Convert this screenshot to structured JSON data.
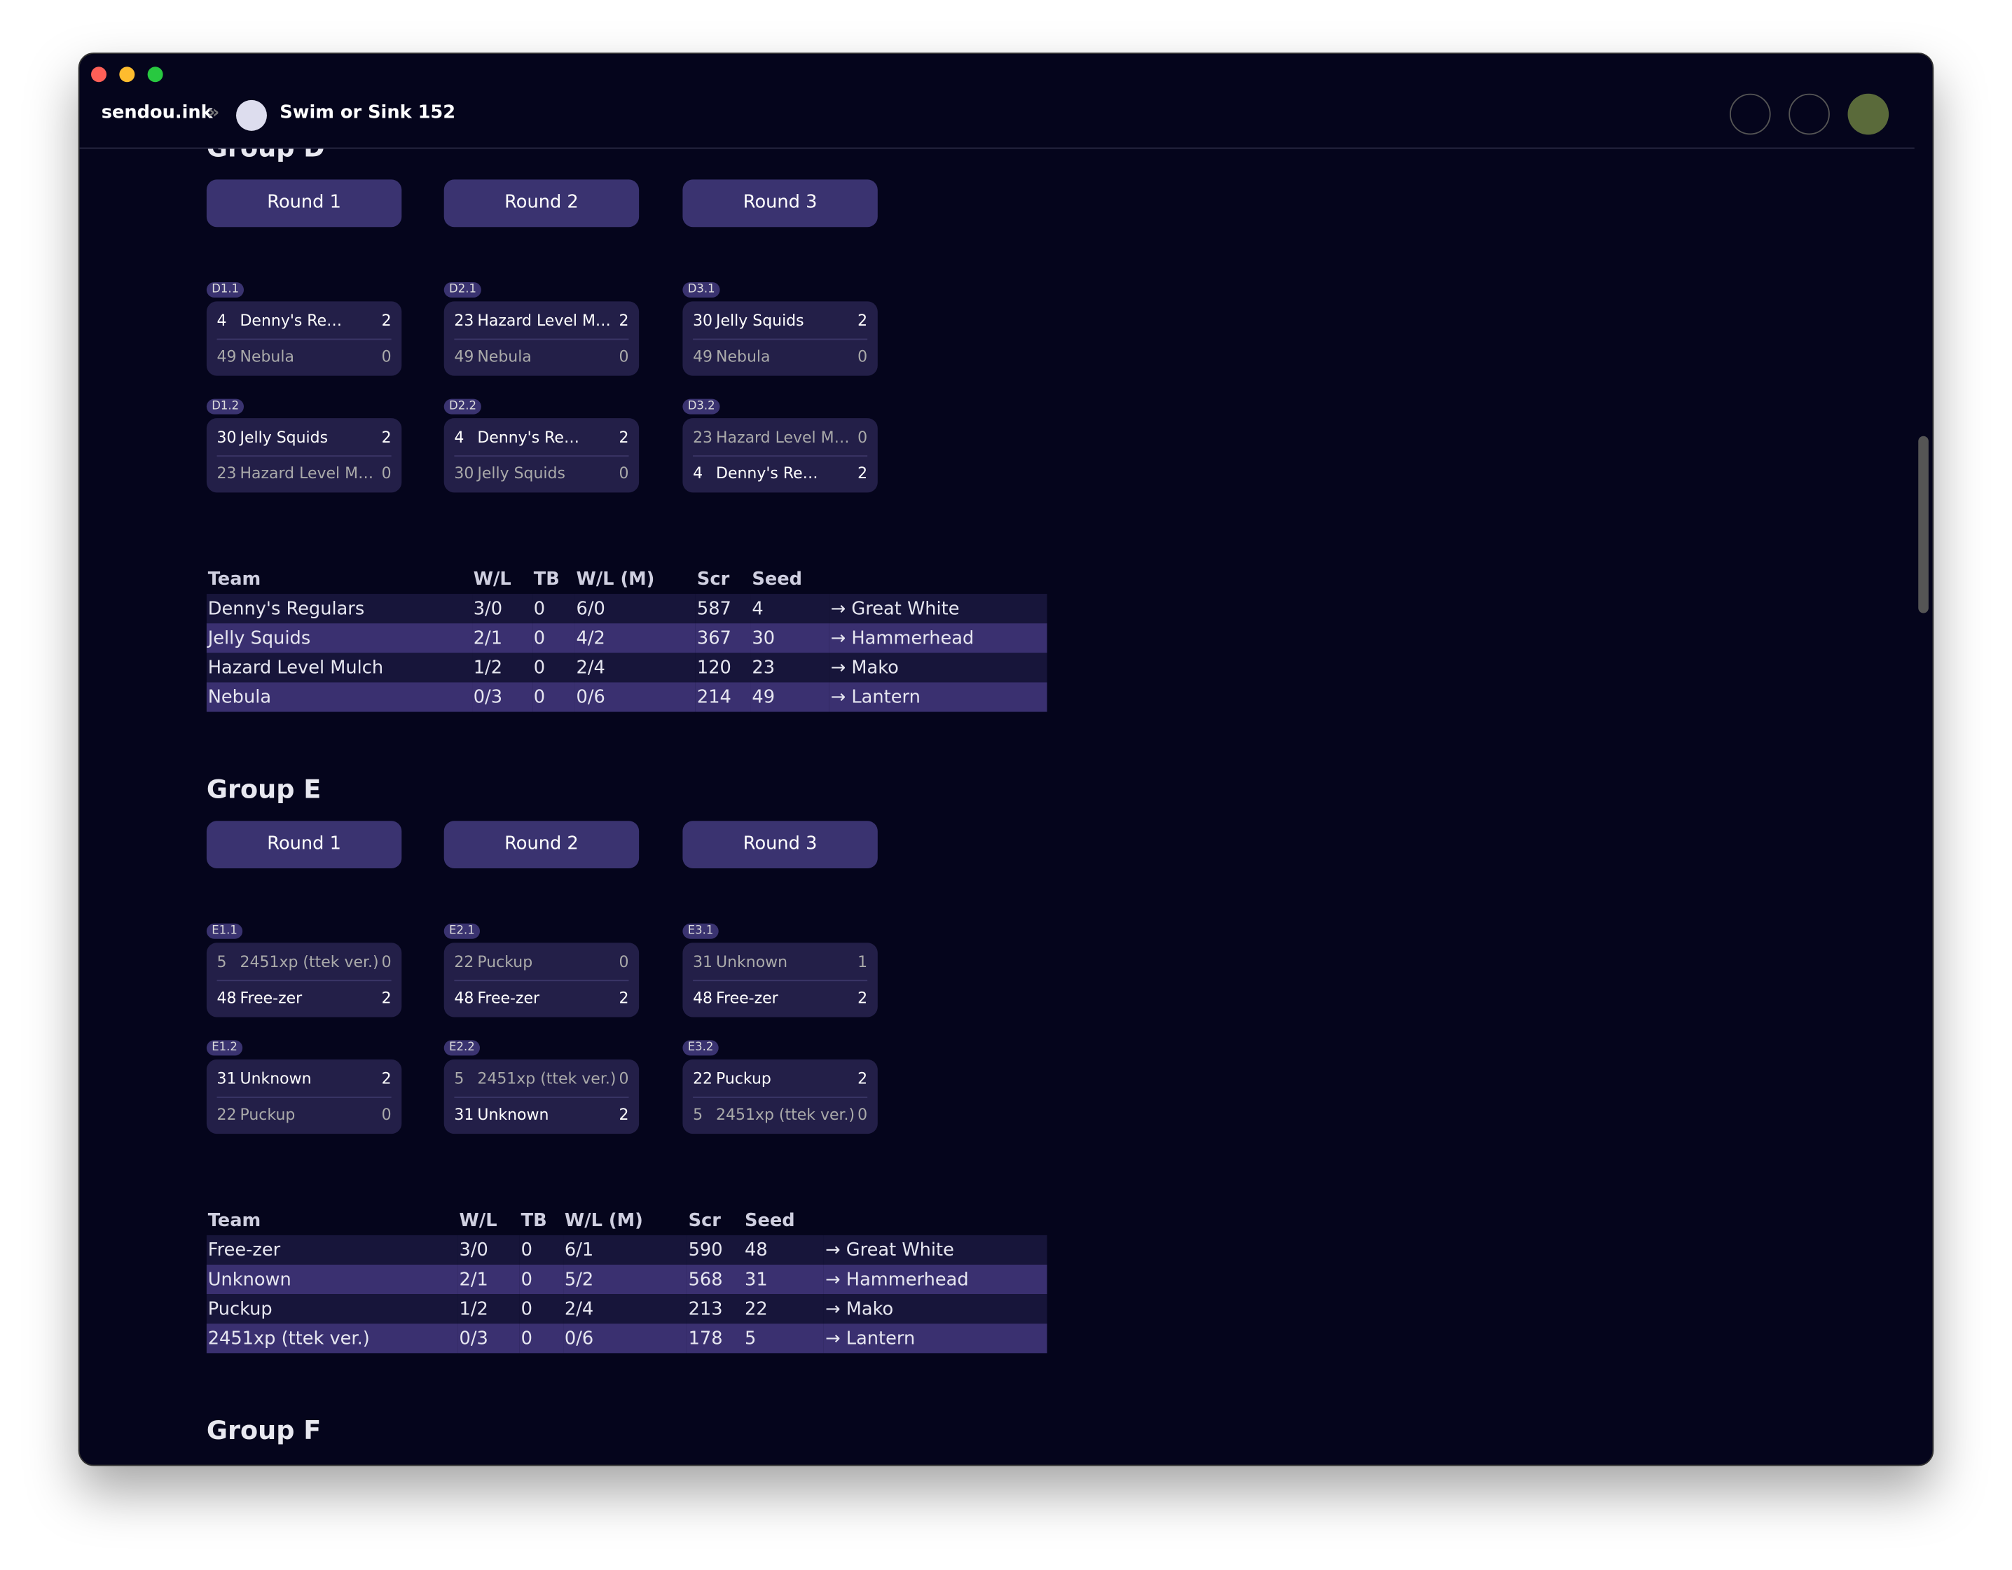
{
  "header": {
    "site": "sendou.ink",
    "tournament": "Swim or Sink 152"
  },
  "groups": [
    {
      "title": "Group D",
      "rounds": [
        {
          "label": "Round 1",
          "matches": [
            {
              "id": "D1.1",
              "teams": [
                {
                  "seed": "4",
                  "name": "Denny's Re…",
                  "score": "2"
                },
                {
                  "seed": "49",
                  "name": "Nebula",
                  "score": "0"
                }
              ]
            },
            {
              "id": "D1.2",
              "teams": [
                {
                  "seed": "30",
                  "name": "Jelly Squids",
                  "score": "2"
                },
                {
                  "seed": "23",
                  "name": "Hazard Level M…",
                  "score": "0"
                }
              ]
            }
          ]
        },
        {
          "label": "Round 2",
          "matches": [
            {
              "id": "D2.1",
              "teams": [
                {
                  "seed": "23",
                  "name": "Hazard Level M…",
                  "score": "2"
                },
                {
                  "seed": "49",
                  "name": "Nebula",
                  "score": "0"
                }
              ]
            },
            {
              "id": "D2.2",
              "teams": [
                {
                  "seed": "4",
                  "name": "Denny's Re…",
                  "score": "2"
                },
                {
                  "seed": "30",
                  "name": "Jelly Squids",
                  "score": "0"
                }
              ]
            }
          ]
        },
        {
          "label": "Round 3",
          "matches": [
            {
              "id": "D3.1",
              "teams": [
                {
                  "seed": "30",
                  "name": "Jelly Squids",
                  "score": "2"
                },
                {
                  "seed": "49",
                  "name": "Nebula",
                  "score": "0"
                }
              ]
            },
            {
              "id": "D3.2",
              "teams": [
                {
                  "seed": "23",
                  "name": "Hazard Level M…",
                  "score": "0"
                },
                {
                  "seed": "4",
                  "name": "Denny's Re…",
                  "score": "2"
                }
              ]
            }
          ]
        }
      ],
      "standings": {
        "columns": [
          "Team",
          "W/L",
          "TB",
          "W/L (M)",
          "Scr",
          "Seed",
          ""
        ],
        "rows": [
          [
            "Denny's Regulars",
            "3/0",
            "0",
            "6/0",
            "587",
            "4",
            "→ Great White"
          ],
          [
            "Jelly Squids",
            "2/1",
            "0",
            "4/2",
            "367",
            "30",
            "→ Hammerhead"
          ],
          [
            "Hazard Level Mulch",
            "1/2",
            "0",
            "2/4",
            "120",
            "23",
            "→ Mako"
          ],
          [
            "Nebula",
            "0/3",
            "0",
            "0/6",
            "214",
            "49",
            "→ Lantern"
          ]
        ]
      }
    },
    {
      "title": "Group E",
      "rounds": [
        {
          "label": "Round 1",
          "matches": [
            {
              "id": "E1.1",
              "teams": [
                {
                  "seed": "5",
                  "name": "2451xp (ttek ver.)",
                  "score": "0"
                },
                {
                  "seed": "48",
                  "name": "Free-zer",
                  "score": "2"
                }
              ]
            },
            {
              "id": "E1.2",
              "teams": [
                {
                  "seed": "31",
                  "name": "Unknown",
                  "score": "2"
                },
                {
                  "seed": "22",
                  "name": "Puckup",
                  "score": "0"
                }
              ]
            }
          ]
        },
        {
          "label": "Round 2",
          "matches": [
            {
              "id": "E2.1",
              "teams": [
                {
                  "seed": "22",
                  "name": "Puckup",
                  "score": "0"
                },
                {
                  "seed": "48",
                  "name": "Free-zer",
                  "score": "2"
                }
              ]
            },
            {
              "id": "E2.2",
              "teams": [
                {
                  "seed": "5",
                  "name": "2451xp (ttek ver.)",
                  "score": "0"
                },
                {
                  "seed": "31",
                  "name": "Unknown",
                  "score": "2"
                }
              ]
            }
          ]
        },
        {
          "label": "Round 3",
          "matches": [
            {
              "id": "E3.1",
              "teams": [
                {
                  "seed": "31",
                  "name": "Unknown",
                  "score": "1"
                },
                {
                  "seed": "48",
                  "name": "Free-zer",
                  "score": "2"
                }
              ]
            },
            {
              "id": "E3.2",
              "teams": [
                {
                  "seed": "22",
                  "name": "Puckup",
                  "score": "2"
                },
                {
                  "seed": "5",
                  "name": "2451xp (ttek ver.)",
                  "score": "0"
                }
              ]
            }
          ]
        }
      ],
      "standings": {
        "columns": [
          "Team",
          "W/L",
          "TB",
          "W/L (M)",
          "Scr",
          "Seed",
          ""
        ],
        "rows": [
          [
            "Free-zer",
            "3/0",
            "0",
            "6/1",
            "590",
            "48",
            "→ Great White"
          ],
          [
            "Unknown",
            "2/1",
            "0",
            "5/2",
            "568",
            "31",
            "→ Hammerhead"
          ],
          [
            "Puckup",
            "1/2",
            "0",
            "2/4",
            "213",
            "22",
            "→ Mako"
          ],
          [
            "2451xp (ttek ver.)",
            "0/3",
            "0",
            "0/6",
            "178",
            "5",
            "→ Lantern"
          ]
        ]
      }
    },
    {
      "title": "Group F"
    }
  ]
}
